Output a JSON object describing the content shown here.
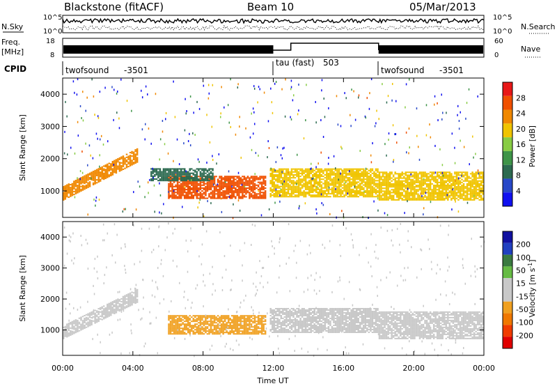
{
  "header": {
    "title": "Blackstone (fitACF)",
    "beam": "Beam 10",
    "date": "05/Mar/2013"
  },
  "status_panel": {
    "nsky_label": "N.Sky",
    "nsearch_label": "N.Search",
    "freq_label": "Freq.",
    "freq_unit": "[MHz]",
    "nave_label": "Nave",
    "cpid_label": "CPID",
    "noise_ticks_left": [
      "10^5",
      "10^0"
    ],
    "noise_ticks_right": [
      "10^5",
      "10^0"
    ],
    "freq_ticks": [
      "18",
      "8"
    ],
    "nave_ticks": [
      "60",
      "0"
    ],
    "cpid_segments": [
      {
        "name": "twofsound",
        "id": "-3501",
        "start_hour": 0,
        "end_hour": 12
      },
      {
        "name": "tau (fast)",
        "id": "503",
        "start_hour": 12,
        "end_hour": 18
      },
      {
        "name": "twofsound",
        "id": "-3501",
        "start_hour": 18,
        "end_hour": 24
      }
    ]
  },
  "x_axis": {
    "label": "Time UT",
    "ticks": [
      "00:00",
      "04:00",
      "08:00",
      "12:00",
      "16:00",
      "20:00",
      "00:00"
    ],
    "range_hours": [
      0,
      24
    ]
  },
  "colors": {
    "power_scale": [
      "#1010f0",
      "#2848c8",
      "#2c6a50",
      "#3e9448",
      "#88cc44",
      "#f0c400",
      "#f08800",
      "#f05000",
      "#e81818"
    ],
    "velocity_scale": [
      "#1010a0",
      "#2040c0",
      "#3a7a40",
      "#66bb44",
      "#c8c8c8",
      "#c8c8c8",
      "#f0a020",
      "#f07800",
      "#f03c00",
      "#e00000"
    ]
  },
  "chart_data": [
    {
      "type": "heatmap",
      "panel": "power",
      "ylabel": "Slant Range [km]",
      "yticks": [
        "4000",
        "3000",
        "2000",
        "1000"
      ],
      "ylim": [
        180,
        4500
      ],
      "xlim_hours": [
        0,
        24
      ],
      "colorbar": {
        "label": "Power [dB]",
        "ticks": [
          "28",
          "24",
          "20",
          "16",
          "12",
          "8",
          "4"
        ],
        "range": [
          0,
          32
        ]
      },
      "regions": [
        {
          "t0": 0.0,
          "t1": 4.3,
          "r0": 700,
          "r1": 2400,
          "value": 22,
          "feature": "rising echo band"
        },
        {
          "t0": 6.0,
          "t1": 11.5,
          "r0": 750,
          "r1": 1450,
          "value": 26
        },
        {
          "t0": 5.0,
          "t1": 8.5,
          "r0": 1300,
          "r1": 1700,
          "value": 8
        },
        {
          "t0": 11.8,
          "t1": 18.0,
          "r0": 800,
          "r1": 1700,
          "value": 20
        },
        {
          "t0": 18.0,
          "t1": 24.0,
          "r0": 700,
          "r1": 1600,
          "value": 18
        }
      ]
    },
    {
      "type": "heatmap",
      "panel": "velocity",
      "ylabel": "Slant Range [km]",
      "yticks": [
        "4000",
        "3000",
        "2000",
        "1000"
      ],
      "ylim": [
        180,
        4500
      ],
      "xlim_hours": [
        0,
        24
      ],
      "colorbar": {
        "label": "Velocity [m s^-1]",
        "ticks": [
          "200",
          "100",
          "50",
          "15",
          "-15",
          "-50",
          "-100",
          "-200"
        ],
        "range": [
          -250,
          250
        ]
      },
      "regions": [
        {
          "t0": 0.0,
          "t1": 4.3,
          "r0": 700,
          "r1": 2400,
          "value": 0,
          "feature": "rising echo band"
        },
        {
          "t0": 6.0,
          "t1": 11.5,
          "r0": 850,
          "r1": 1450,
          "value": -60
        },
        {
          "t0": 11.8,
          "t1": 18.0,
          "r0": 900,
          "r1": 1700,
          "value": 0
        },
        {
          "t0": 18.0,
          "t1": 24.0,
          "r0": 700,
          "r1": 1600,
          "value": -10
        }
      ]
    }
  ]
}
